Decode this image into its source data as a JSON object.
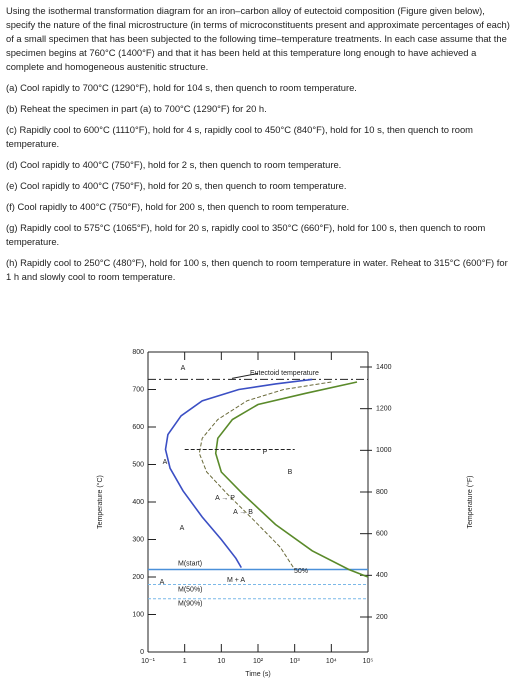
{
  "problem": {
    "intro": "Using the isothermal transformation diagram for an iron–carbon alloy of eutectoid composition (Figure given below), specify the nature of the final microstructure (in terms of microconstituents present and approximate percentages of each) of a small specimen that has been subjected to the following time–temperature treatments. In each case assume that the specimen begins at 760°C (1400°F) and that it has been held at this temperature long enough to have achieved a complete and homogeneous austenitic structure.",
    "items": [
      "(a) Cool rapidly to 700°C (1290°F), hold for 104 s, then quench to room temperature.",
      "(b) Reheat the specimen in part (a) to 700°C (1290°F) for 20 h.",
      "(c) Rapidly cool to 600°C (1110°F), hold for 4 s, rapidly cool to 450°C (840°F), hold for 10 s, then quench to room temperature.",
      "(d) Cool rapidly to 400°C (750°F), hold for 2 s, then quench to room temperature.",
      "(e) Cool rapidly to 400°C (750°F), hold for 20 s, then quench to room temperature.",
      "(f) Cool rapidly to 400°C (750°F), hold for 200 s, then quench to room temperature.",
      "(g) Rapidly cool to 575°C (1065°F), hold for 20 s, rapidly cool to 350°C (660°F), hold for 100 s, then quench to room temperature.",
      "(h) Rapidly cool to 250°C (480°F), hold for 100 s, then quench to room temperature in water. Reheat to 315°C (600°F) for 1 h and slowly cool to room temperature."
    ]
  },
  "chart_data": {
    "type": "line",
    "xlabel": "Time (s)",
    "ylabel": "Temperature (°C)",
    "y2label": "Temperature (°F)",
    "xscale": "log",
    "xlim": [
      0.1,
      100000
    ],
    "xticks": [
      {
        "value": 0.1,
        "label": "10⁻¹"
      },
      1,
      10,
      {
        "value": 100,
        "label": "10²"
      },
      {
        "value": 1000,
        "label": "10³"
      },
      {
        "value": 10000,
        "label": "10⁴"
      },
      {
        "value": 100000,
        "label": "10⁵"
      }
    ],
    "ylim": [
      0,
      800
    ],
    "yticks": [
      0,
      100,
      200,
      300,
      400,
      500,
      600,
      700,
      800
    ],
    "y2lim": [
      32,
      1472
    ],
    "y2ticks": [
      200,
      400,
      600,
      800,
      1000,
      1200,
      1400
    ],
    "series": [
      {
        "color": "#3b4fc4",
        "dash": false,
        "x": [
          3000,
          300,
          30,
          3,
          0.8,
          0.35,
          0.3,
          0.4,
          0.9,
          3,
          10,
          25,
          35
        ],
        "values": [
          727,
          715,
          700,
          670,
          630,
          580,
          540,
          490,
          430,
          360,
          300,
          250,
          225
        ]
      },
      {
        "color": "#6a6a3a",
        "dash": true,
        "x": [
          10000,
          500,
          50,
          8,
          3,
          2.5,
          4,
          15,
          80,
          400,
          1000
        ],
        "values": [
          720,
          700,
          670,
          620,
          570,
          530,
          480,
          420,
          350,
          280,
          220
        ]
      },
      {
        "color": "#5a8a2a",
        "dash": false,
        "x": [
          50000,
          2000,
          100,
          20,
          8,
          7,
          10,
          40,
          300,
          3000,
          30000,
          100000
        ],
        "values": [
          720,
          690,
          660,
          620,
          570,
          530,
          480,
          420,
          340,
          270,
          220,
          200
        ]
      },
      {
        "color": "#222222",
        "dash": true,
        "x": [
          1,
          1000
        ],
        "values": [
          540,
          540
        ]
      }
    ],
    "hlines": [
      {
        "label": "Eutectoid temperature",
        "value": 727
      },
      {
        "label": "M(start)",
        "value": 220
      },
      {
        "label": "M(50%)",
        "value": 180
      },
      {
        "label": "M(90%)",
        "value": 142
      }
    ],
    "annotations": [
      "A",
      "A",
      "A",
      "A",
      "P",
      "B",
      "A → P",
      "A → B",
      "M + A",
      "50%"
    ]
  }
}
